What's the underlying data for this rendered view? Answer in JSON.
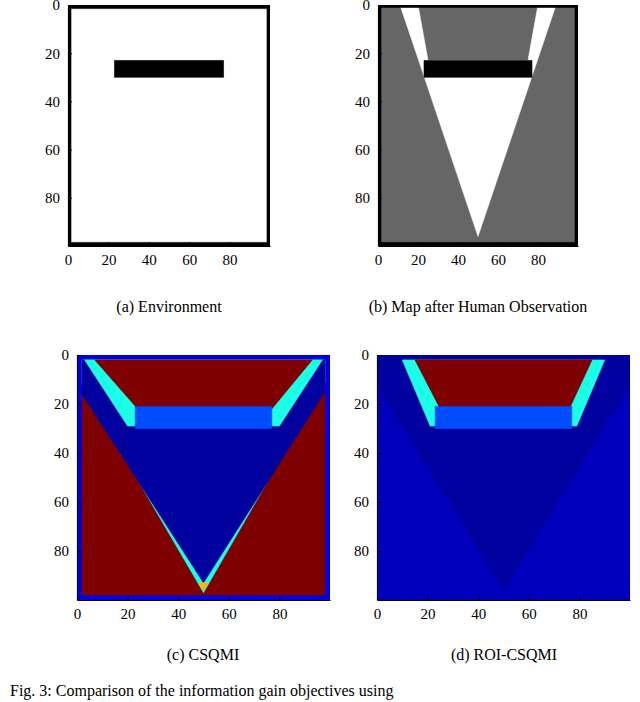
{
  "chart_data": [
    {
      "type": "heatmap",
      "title": "(a) Environment",
      "color": "gray",
      "value_range": [
        0,
        1
      ],
      "xlim": [
        0,
        100
      ],
      "ylim": [
        0,
        100
      ],
      "xticks": [
        0,
        20,
        40,
        60,
        80
      ],
      "yticks": [
        0,
        20,
        40,
        60,
        80
      ],
      "regions": [
        {
          "value": 0,
          "points": [
            [
              0,
              0
            ],
            [
              100,
              0
            ],
            [
              100,
              100
            ],
            [
              0,
              100
            ]
          ]
        },
        {
          "value": 1,
          "points": [
            [
              0,
              0
            ],
            [
              100,
              0
            ],
            [
              100,
              1.5
            ],
            [
              0,
              1.5
            ]
          ]
        },
        {
          "value": 1,
          "points": [
            [
              0,
              98.5
            ],
            [
              100,
              98.5
            ],
            [
              100,
              100
            ],
            [
              0,
              100
            ]
          ]
        },
        {
          "value": 1,
          "points": [
            [
              0,
              0
            ],
            [
              1.5,
              0
            ],
            [
              1.5,
              100
            ],
            [
              0,
              100
            ]
          ]
        },
        {
          "value": 1,
          "points": [
            [
              98.5,
              0
            ],
            [
              100,
              0
            ],
            [
              100,
              100
            ],
            [
              98.5,
              100
            ]
          ]
        },
        {
          "value": 1,
          "points": [
            [
              23,
              23
            ],
            [
              77,
              23
            ],
            [
              77,
              30
            ],
            [
              23,
              30
            ]
          ]
        }
      ]
    },
    {
      "type": "heatmap",
      "title": "(b) Map after Human Observation",
      "color": "gray",
      "value_range": [
        0,
        1
      ],
      "xlim": [
        0,
        100
      ],
      "ylim": [
        0,
        100
      ],
      "xticks": [
        0,
        20,
        40,
        60,
        80
      ],
      "yticks": [
        0,
        20,
        40,
        60,
        80
      ],
      "regions": [
        {
          "value": 0.6,
          "points": [
            [
              0,
              0
            ],
            [
              100,
              0
            ],
            [
              100,
              100
            ],
            [
              0,
              100
            ]
          ]
        },
        {
          "value": 0,
          "points": [
            [
              50,
              96
            ],
            [
              11,
              0
            ],
            [
              20,
              0
            ],
            [
              25,
              23
            ],
            [
              75,
              23
            ],
            [
              80,
              0
            ],
            [
              89,
              0
            ]
          ]
        },
        {
          "value": 1,
          "points": [
            [
              0,
              0
            ],
            [
              100,
              0
            ],
            [
              100,
              1
            ],
            [
              0,
              1
            ]
          ]
        },
        {
          "value": 1,
          "points": [
            [
              0,
              98.5
            ],
            [
              100,
              98.5
            ],
            [
              100,
              100
            ],
            [
              0,
              100
            ]
          ]
        },
        {
          "value": 1,
          "points": [
            [
              0,
              0
            ],
            [
              1.5,
              0
            ],
            [
              1.5,
              100
            ],
            [
              0,
              100
            ]
          ]
        },
        {
          "value": 1,
          "points": [
            [
              98.5,
              0
            ],
            [
              100,
              0
            ],
            [
              100,
              100
            ],
            [
              98.5,
              100
            ]
          ]
        },
        {
          "value": 1,
          "points": [
            [
              23,
              23
            ],
            [
              77,
              23
            ],
            [
              77,
              30
            ],
            [
              23,
              30
            ]
          ]
        }
      ]
    },
    {
      "type": "heatmap",
      "title": "(c) CSQMI",
      "color": "jet",
      "value_range": [
        0,
        1
      ],
      "xlim": [
        0,
        100
      ],
      "ylim": [
        0,
        100
      ],
      "xticks": [
        0,
        20,
        40,
        60,
        80
      ],
      "yticks": [
        0,
        20,
        40,
        60,
        80
      ],
      "regions": [
        {
          "value": 0.1,
          "points": [
            [
              0,
              0
            ],
            [
              100,
              0
            ],
            [
              100,
              100
            ],
            [
              0,
              100
            ]
          ]
        },
        {
          "value": 1,
          "points": [
            [
              2,
              2
            ],
            [
              98,
              2
            ],
            [
              98,
              98
            ],
            [
              2,
              98
            ]
          ]
        },
        {
          "value": 0.4,
          "points": [
            [
              50,
              97
            ],
            [
              2,
              12
            ],
            [
              2,
              2
            ],
            [
              98,
              2
            ],
            [
              98,
              11
            ]
          ]
        },
        {
          "value": 0.03,
          "points": [
            [
              50,
              93
            ],
            [
              2,
              16
            ],
            [
              2,
              2
            ],
            [
              98,
              2
            ],
            [
              98,
              15
            ]
          ]
        },
        {
          "value": 0.4,
          "points": [
            [
              3,
              2
            ],
            [
              97,
              2
            ],
            [
              80,
              29
            ],
            [
              20,
              29
            ]
          ]
        },
        {
          "value": 1,
          "points": [
            [
              7,
              2
            ],
            [
              93,
              2
            ],
            [
              77,
              22
            ],
            [
              24,
              22
            ]
          ]
        },
        {
          "value": 0.2,
          "points": [
            [
              23,
              21
            ],
            [
              77,
              21
            ],
            [
              77,
              30
            ],
            [
              23,
              30
            ]
          ]
        },
        {
          "value": 0.7,
          "points": [
            [
              48,
              93
            ],
            [
              52,
              93
            ],
            [
              50,
              96
            ]
          ]
        }
      ]
    },
    {
      "type": "heatmap",
      "title": "(d) ROI-CSQMI",
      "color": "jet",
      "value_range": [
        0,
        1
      ],
      "xlim": [
        0,
        100
      ],
      "ylim": [
        0,
        100
      ],
      "xticks": [
        0,
        20,
        40,
        60,
        80
      ],
      "yticks": [
        0,
        20,
        40,
        60,
        80
      ],
      "regions": [
        {
          "value": 0.06,
          "points": [
            [
              0,
              0
            ],
            [
              100,
              0
            ],
            [
              100,
              100
            ],
            [
              0,
              100
            ]
          ]
        },
        {
          "value": 0.03,
          "points": [
            [
              50,
              96
            ],
            [
              0,
              12
            ],
            [
              0,
              0
            ],
            [
              100,
              0
            ],
            [
              100,
              12
            ]
          ]
        },
        {
          "value": 0.4,
          "points": [
            [
              10,
              2
            ],
            [
              90,
              2
            ],
            [
              79,
              29
            ],
            [
              21,
              29
            ]
          ]
        },
        {
          "value": 1,
          "points": [
            [
              15,
              2
            ],
            [
              85,
              2
            ],
            [
              76,
              22
            ],
            [
              25,
              22
            ]
          ]
        },
        {
          "value": 0.2,
          "points": [
            [
              23,
              21
            ],
            [
              77,
              21
            ],
            [
              77,
              30
            ],
            [
              23,
              30
            ]
          ]
        }
      ]
    }
  ],
  "caption": "Fig. 3: Comparison of the information gain objectives using"
}
